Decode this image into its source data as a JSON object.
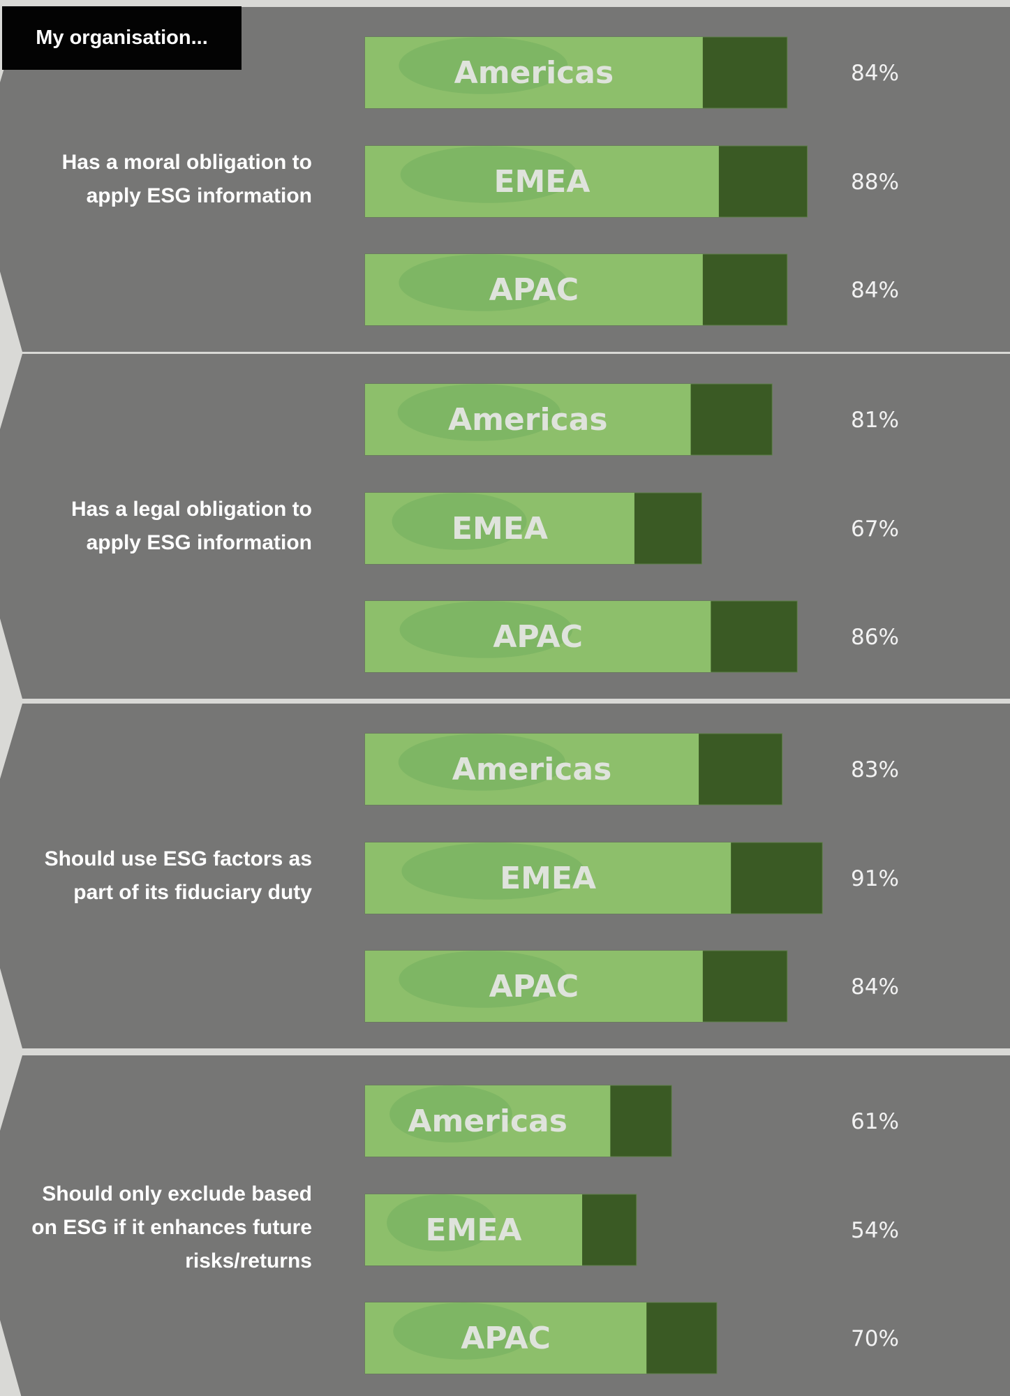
{
  "chart_data": {
    "type": "bar",
    "orientation": "horizontal",
    "title": "My organisation...",
    "categories": [
      "Has a moral obligation to apply ESG information",
      "Has a legal obligation to apply ESG information",
      "Should use ESG factors as part of its fiduciary duty",
      "Should only exclude based on ESG if it enhances future risks/returns"
    ],
    "series": [
      {
        "name": "Americas",
        "color": "#3a5a24",
        "values": [
          84,
          81,
          83,
          61
        ],
        "value_labels": [
          "84%",
          "81%",
          "83%",
          "61%"
        ]
      },
      {
        "name": "EMEA",
        "color": "#3a5a24",
        "values": [
          88,
          67,
          91,
          54
        ],
        "value_labels": [
          "88%",
          "67%",
          "91%",
          "54%"
        ]
      },
      {
        "name": "APAC",
        "color": "#3a5a24",
        "values": [
          84,
          86,
          84,
          70
        ],
        "value_labels": [
          "84%",
          "86%",
          "84%",
          "70%"
        ]
      }
    ]
  }
}
